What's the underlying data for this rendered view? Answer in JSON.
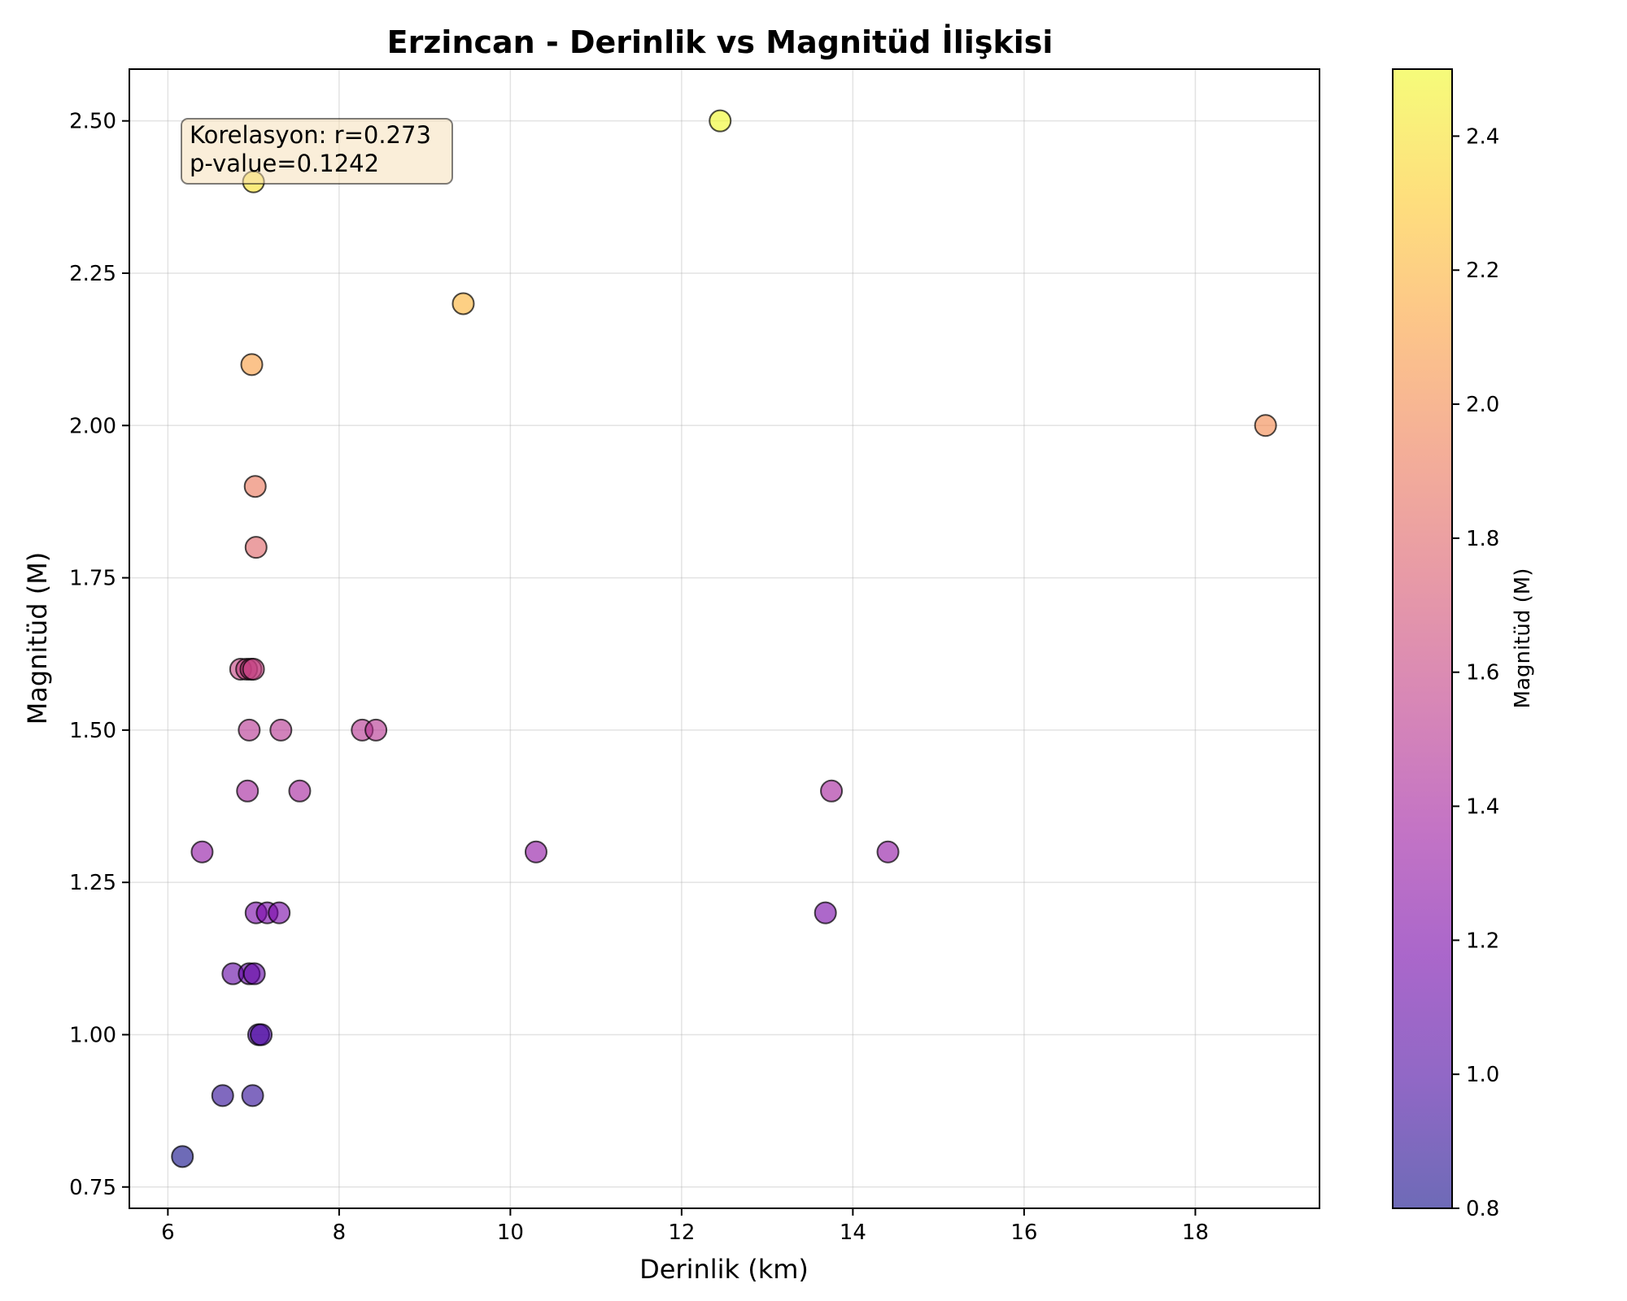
{
  "chart_data": {
    "type": "scatter",
    "title": "Erzincan - Derinlik vs Magnitüd İlişkisi",
    "xlabel": "Derinlik (km)",
    "ylabel": "Magnitüd (M)",
    "xlim": [
      5.55,
      19.45
    ],
    "ylim": [
      0.715,
      2.585
    ],
    "xticks": [
      "6",
      "8",
      "10",
      "12",
      "14",
      "16",
      "18"
    ],
    "yticks": [
      "0.75",
      "1.00",
      "1.25",
      "1.50",
      "1.75",
      "2.00",
      "2.25",
      "2.50"
    ],
    "grid": true,
    "colormap": "plasma",
    "colors": {
      "stops": [
        "#0d0887",
        "#46039f",
        "#7201a8",
        "#9c179e",
        "#bd3786",
        "#d8576b",
        "#ed7953",
        "#fb9f3a",
        "#fdca26",
        "#f0f921"
      ],
      "point_edge": "#000000",
      "annotation_bg": "#f5deb3"
    },
    "colorbar": {
      "label": "Magnitüd (M)",
      "range": [
        0.8,
        2.5
      ],
      "ticks": [
        "0.8",
        "1.0",
        "1.2",
        "1.4",
        "1.6",
        "1.8",
        "2.0",
        "2.2",
        "2.4"
      ]
    },
    "annotation": {
      "line1": "Korelasyon: r=0.273",
      "line2": "p-value=0.1242",
      "placement": "top-left"
    },
    "points": [
      {
        "x": 12.45,
        "y": 2.5
      },
      {
        "x": 7.0,
        "y": 2.4
      },
      {
        "x": 9.45,
        "y": 2.2
      },
      {
        "x": 6.98,
        "y": 2.1
      },
      {
        "x": 18.82,
        "y": 2.0
      },
      {
        "x": 7.02,
        "y": 1.9
      },
      {
        "x": 7.03,
        "y": 1.8
      },
      {
        "x": 6.85,
        "y": 1.6
      },
      {
        "x": 6.92,
        "y": 1.6
      },
      {
        "x": 6.97,
        "y": 1.6
      },
      {
        "x": 7.0,
        "y": 1.6
      },
      {
        "x": 6.95,
        "y": 1.5
      },
      {
        "x": 7.32,
        "y": 1.5
      },
      {
        "x": 8.27,
        "y": 1.5
      },
      {
        "x": 8.43,
        "y": 1.5
      },
      {
        "x": 6.93,
        "y": 1.4
      },
      {
        "x": 7.54,
        "y": 1.4
      },
      {
        "x": 13.75,
        "y": 1.4
      },
      {
        "x": 6.4,
        "y": 1.3
      },
      {
        "x": 10.3,
        "y": 1.3
      },
      {
        "x": 14.41,
        "y": 1.3
      },
      {
        "x": 7.03,
        "y": 1.2
      },
      {
        "x": 7.16,
        "y": 1.2
      },
      {
        "x": 7.3,
        "y": 1.2
      },
      {
        "x": 13.68,
        "y": 1.2
      },
      {
        "x": 6.76,
        "y": 1.1
      },
      {
        "x": 6.95,
        "y": 1.1
      },
      {
        "x": 7.01,
        "y": 1.1
      },
      {
        "x": 7.06,
        "y": 1.0
      },
      {
        "x": 7.09,
        "y": 1.0
      },
      {
        "x": 6.64,
        "y": 0.9
      },
      {
        "x": 6.99,
        "y": 0.9
      },
      {
        "x": 6.17,
        "y": 0.8
      }
    ]
  }
}
